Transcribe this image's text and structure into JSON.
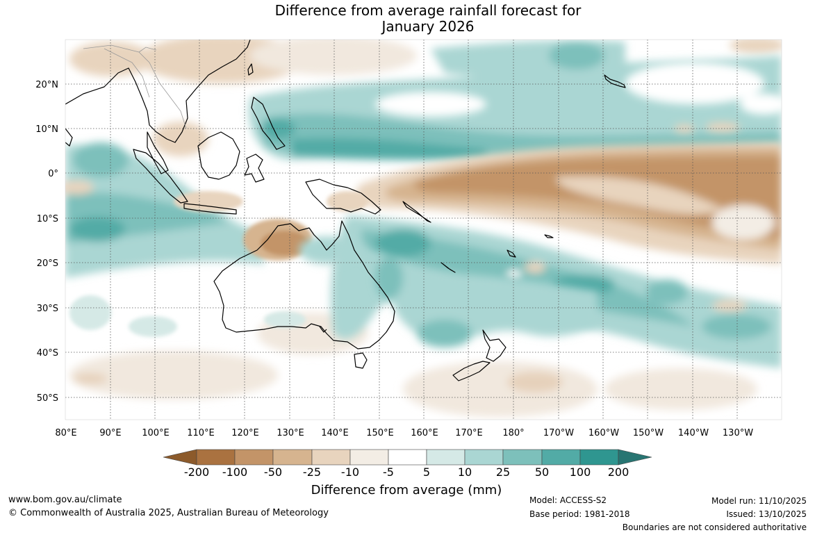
{
  "title": {
    "line1": "Difference from average rainfall forecast for",
    "line2": "January 2026"
  },
  "axes": {
    "lat_labels": [
      "20°N",
      "10°N",
      "0°",
      "10°S",
      "20°S",
      "30°S",
      "40°S",
      "50°S"
    ],
    "lon_labels": [
      "80°E",
      "90°E",
      "100°E",
      "110°E",
      "120°E",
      "130°E",
      "140°E",
      "150°E",
      "160°E",
      "170°E",
      "180°",
      "170°W",
      "160°W",
      "150°W",
      "140°W",
      "130°W"
    ]
  },
  "colorbar": {
    "title": "Difference from average (mm)",
    "labels": [
      "-200",
      "-100",
      "-50",
      "-25",
      "-10",
      "-5",
      "5",
      "10",
      "25",
      "50",
      "100",
      "200"
    ],
    "colors": [
      "#8c5a2b",
      "#aa7240",
      "#c39468",
      "#d6b48f",
      "#e8d4be",
      "#f3ede5",
      "#ffffff",
      "#d5e9e6",
      "#aad6d3",
      "#7dc0bb",
      "#52aba6",
      "#2f9690",
      "#287572"
    ]
  },
  "footer": {
    "website": "www.bom.gov.au/climate",
    "copyright": "© Commonwealth of Australia 2025, Australian Bureau of Meteorology",
    "model": "Model: ACCESS-S2",
    "base_period": "Base period: 1981-2018",
    "model_run": "Model run: 11/10/2025",
    "issued": "Issued: 13/10/2025",
    "boundaries": "Boundaries are not considered authoritative"
  }
}
